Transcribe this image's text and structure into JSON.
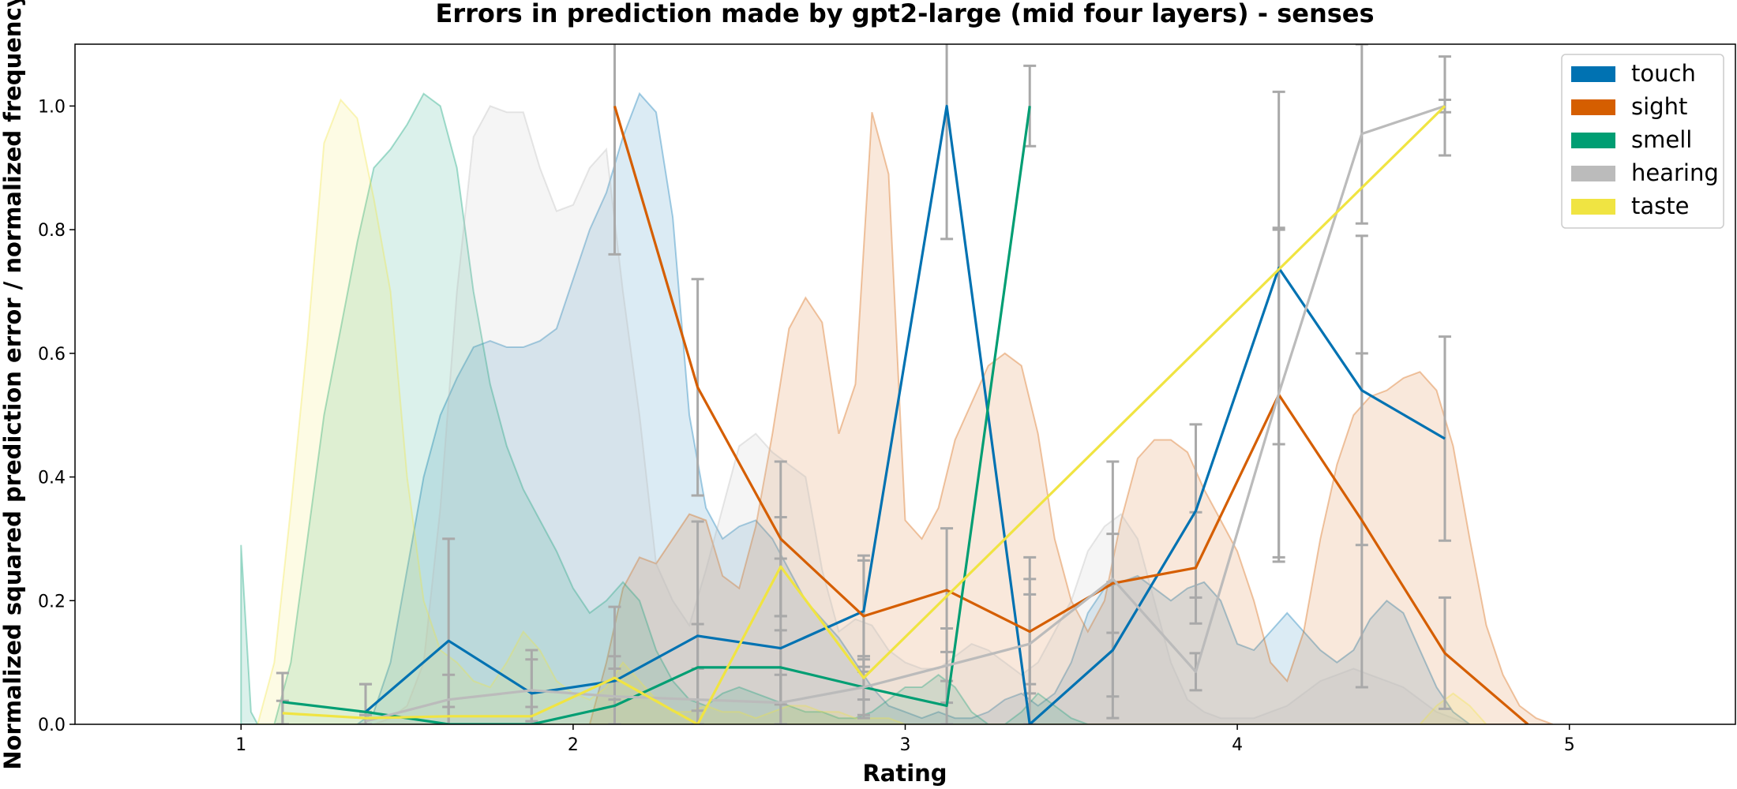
{
  "chart_data": {
    "type": "line",
    "title": "Errors in prediction made by gpt2-large (mid four layers) - senses",
    "xlabel": "Rating",
    "ylabel": "Normalized squared prediction error / normalized frequency",
    "xlim": [
      0.5,
      5.5
    ],
    "ylim": [
      0,
      1.1
    ],
    "xticks": [
      "1",
      "2",
      "3",
      "4",
      "5"
    ],
    "yticks": [
      "0.0",
      "0.2",
      "0.4",
      "0.6",
      "0.8",
      "1.0"
    ],
    "legend_position": "top-right",
    "series": [
      {
        "name": "touch",
        "color": "#0072b2",
        "x": [
          1.375,
          1.625,
          1.875,
          2.125,
          2.375,
          2.625,
          2.875,
          3.125,
          3.375,
          3.625,
          3.875,
          4.125,
          4.375,
          4.625
        ],
        "values": [
          0.02,
          0.135,
          0.05,
          0.07,
          0.143,
          0.123,
          0.183,
          1.0,
          0.0,
          0.12,
          0.345,
          0.738,
          0.54,
          0.462
        ],
        "err": [
          0.045,
          0.165,
          0.07,
          0.12,
          0.185,
          0.145,
          0.09,
          0.215,
          0.27,
          0.11,
          0.14,
          0.285,
          0.25,
          0.165
        ],
        "distribution": {
          "x": [
            1.35,
            1.4,
            1.45,
            1.5,
            1.55,
            1.6,
            1.65,
            1.7,
            1.75,
            1.8,
            1.85,
            1.9,
            1.95,
            2.0,
            2.05,
            2.1,
            2.15,
            2.2,
            2.25,
            2.3,
            2.35,
            2.4,
            2.45,
            2.5,
            2.55,
            2.6,
            2.65,
            2.7,
            2.75,
            2.8,
            2.85,
            2.9,
            2.95,
            3.0,
            3.05,
            3.1,
            3.15,
            3.2,
            3.25,
            3.3,
            3.35,
            3.4,
            3.45,
            3.5,
            3.55,
            3.6,
            3.65,
            3.7,
            3.75,
            3.8,
            3.85,
            3.9,
            3.95,
            4.0,
            4.05,
            4.1,
            4.15,
            4.2,
            4.25,
            4.3,
            4.35,
            4.4,
            4.45,
            4.5,
            4.55,
            4.6,
            4.65,
            4.7
          ],
          "values": [
            0.0,
            0.02,
            0.1,
            0.25,
            0.4,
            0.5,
            0.56,
            0.61,
            0.62,
            0.61,
            0.61,
            0.62,
            0.64,
            0.72,
            0.8,
            0.86,
            0.95,
            1.02,
            0.99,
            0.82,
            0.5,
            0.35,
            0.3,
            0.32,
            0.33,
            0.3,
            0.25,
            0.2,
            0.17,
            0.14,
            0.1,
            0.06,
            0.03,
            0.02,
            0.01,
            0.02,
            0.01,
            0.01,
            0.02,
            0.04,
            0.05,
            0.03,
            0.05,
            0.1,
            0.18,
            0.22,
            0.23,
            0.24,
            0.22,
            0.2,
            0.22,
            0.23,
            0.2,
            0.13,
            0.12,
            0.15,
            0.18,
            0.15,
            0.12,
            0.1,
            0.12,
            0.17,
            0.2,
            0.18,
            0.12,
            0.06,
            0.02,
            0.0
          ]
        }
      },
      {
        "name": "sight",
        "color": "#d55e00",
        "x": [
          2.125,
          2.375,
          2.625,
          2.875,
          3.125,
          3.375,
          3.625,
          3.875,
          4.125,
          4.375,
          4.625,
          4.875
        ],
        "values": [
          1.0,
          0.545,
          0.3,
          0.175,
          0.217,
          0.15,
          0.228,
          0.253,
          0.533,
          0.33,
          0.115,
          0.0
        ],
        "err": [
          0.24,
          0.175,
          0.125,
          0.09,
          0.1,
          0.085,
          0.08,
          0.09,
          0.27,
          0.27,
          0.09,
          0.0
        ],
        "distribution": {
          "x": [
            2.05,
            2.1,
            2.15,
            2.2,
            2.25,
            2.3,
            2.35,
            2.4,
            2.45,
            2.5,
            2.55,
            2.6,
            2.65,
            2.7,
            2.75,
            2.8,
            2.85,
            2.9,
            2.95,
            3.0,
            3.05,
            3.1,
            3.15,
            3.2,
            3.25,
            3.3,
            3.35,
            3.4,
            3.45,
            3.5,
            3.55,
            3.6,
            3.65,
            3.7,
            3.75,
            3.8,
            3.85,
            3.9,
            3.95,
            4.0,
            4.05,
            4.1,
            4.15,
            4.2,
            4.25,
            4.3,
            4.35,
            4.4,
            4.45,
            4.5,
            4.55,
            4.6,
            4.65,
            4.7,
            4.75,
            4.8,
            4.85,
            4.9,
            4.95
          ],
          "values": [
            0.0,
            0.1,
            0.22,
            0.27,
            0.26,
            0.3,
            0.34,
            0.33,
            0.24,
            0.22,
            0.32,
            0.47,
            0.64,
            0.69,
            0.65,
            0.47,
            0.55,
            0.99,
            0.89,
            0.33,
            0.3,
            0.35,
            0.46,
            0.52,
            0.58,
            0.6,
            0.58,
            0.47,
            0.3,
            0.2,
            0.15,
            0.2,
            0.33,
            0.43,
            0.46,
            0.46,
            0.44,
            0.38,
            0.33,
            0.28,
            0.2,
            0.1,
            0.07,
            0.15,
            0.3,
            0.42,
            0.5,
            0.53,
            0.54,
            0.56,
            0.57,
            0.54,
            0.45,
            0.3,
            0.16,
            0.08,
            0.03,
            0.01,
            0.0
          ]
        }
      },
      {
        "name": "smell",
        "color": "#009e73",
        "x": [
          1.125,
          1.375,
          1.625,
          1.875,
          2.125,
          2.375,
          2.625,
          2.875,
          3.125,
          3.375
        ],
        "values": [
          0.036,
          0.02,
          0.0,
          0.0,
          0.03,
          0.092,
          0.092,
          0.06,
          0.03,
          1.0
        ],
        "err": [
          0.047,
          0.045,
          0.0,
          0.0,
          0.04,
          0.07,
          0.06,
          0.045,
          0.04,
          0.065
        ],
        "distribution": {
          "x": [
            1.0,
            1.03,
            1.05,
            1.1,
            1.15,
            1.2,
            1.25,
            1.3,
            1.35,
            1.4,
            1.45,
            1.5,
            1.55,
            1.6,
            1.65,
            1.7,
            1.75,
            1.8,
            1.85,
            1.9,
            1.95,
            2.0,
            2.05,
            2.1,
            2.15,
            2.2,
            2.25,
            2.3,
            2.35,
            2.4,
            2.45,
            2.5,
            2.55,
            2.6,
            2.65,
            2.7,
            2.75,
            2.8,
            2.85,
            2.9,
            2.95,
            3.0,
            3.05,
            3.1,
            3.15,
            3.2,
            3.25,
            3.3,
            3.35,
            3.4,
            3.45,
            3.5,
            3.55
          ],
          "values": [
            0.29,
            0.02,
            0.0,
            0.0,
            0.1,
            0.3,
            0.5,
            0.64,
            0.78,
            0.9,
            0.93,
            0.97,
            1.02,
            1.0,
            0.9,
            0.7,
            0.55,
            0.45,
            0.38,
            0.33,
            0.28,
            0.22,
            0.18,
            0.2,
            0.23,
            0.2,
            0.12,
            0.07,
            0.04,
            0.03,
            0.05,
            0.06,
            0.05,
            0.04,
            0.03,
            0.02,
            0.02,
            0.01,
            0.01,
            0.02,
            0.04,
            0.06,
            0.06,
            0.08,
            0.06,
            0.02,
            0.0,
            0.0,
            0.02,
            0.05,
            0.03,
            0.01,
            0.0
          ]
        }
      },
      {
        "name": "hearing",
        "color": "#bbbbbb",
        "x": [
          1.375,
          1.625,
          1.875,
          2.125,
          2.375,
          2.625,
          2.875,
          3.125,
          3.375,
          3.625,
          3.875,
          4.125,
          4.375,
          4.625
        ],
        "values": [
          0.005,
          0.04,
          0.055,
          0.045,
          0.04,
          0.035,
          0.06,
          0.095,
          0.13,
          0.235,
          0.085,
          0.535,
          0.955,
          1.0
        ],
        "err": [
          0.01,
          0.04,
          0.05,
          0.045,
          0.05,
          0.045,
          0.05,
          0.06,
          0.08,
          0.19,
          0.03,
          0.265,
          0.145,
          0.08
        ],
        "distribution": {
          "x": [
            1.4,
            1.45,
            1.5,
            1.55,
            1.6,
            1.65,
            1.7,
            1.75,
            1.8,
            1.85,
            1.9,
            1.95,
            2.0,
            2.05,
            2.1,
            2.15,
            2.2,
            2.25,
            2.3,
            2.35,
            2.4,
            2.45,
            2.5,
            2.55,
            2.6,
            2.65,
            2.7,
            2.75,
            2.8,
            2.85,
            2.9,
            2.95,
            3.0,
            3.05,
            3.1,
            3.15,
            3.2,
            3.25,
            3.3,
            3.35,
            3.4,
            3.45,
            3.5,
            3.55,
            3.6,
            3.65,
            3.7,
            3.75,
            3.8,
            3.85,
            3.9,
            3.95,
            4.0,
            4.05,
            4.1,
            4.15,
            4.2,
            4.25,
            4.3,
            4.35,
            4.4,
            4.45,
            4.5,
            4.55,
            4.6,
            4.65,
            4.7
          ],
          "values": [
            0.0,
            0.01,
            0.03,
            0.1,
            0.35,
            0.7,
            0.95,
            1.0,
            0.99,
            0.99,
            0.9,
            0.83,
            0.84,
            0.9,
            0.93,
            0.7,
            0.5,
            0.26,
            0.2,
            0.16,
            0.25,
            0.35,
            0.45,
            0.47,
            0.44,
            0.42,
            0.4,
            0.25,
            0.15,
            0.17,
            0.16,
            0.12,
            0.1,
            0.09,
            0.09,
            0.11,
            0.13,
            0.12,
            0.1,
            0.08,
            0.1,
            0.15,
            0.2,
            0.28,
            0.32,
            0.34,
            0.3,
            0.2,
            0.1,
            0.04,
            0.02,
            0.01,
            0.01,
            0.01,
            0.02,
            0.03,
            0.05,
            0.07,
            0.08,
            0.09,
            0.08,
            0.07,
            0.06,
            0.04,
            0.02,
            0.01,
            0.0
          ]
        }
      },
      {
        "name": "taste",
        "color": "#f0e442",
        "x": [
          1.125,
          1.375,
          1.625,
          1.875,
          2.125,
          2.375,
          2.625,
          2.875,
          4.625
        ],
        "values": [
          0.018,
          0.01,
          0.013,
          0.013,
          0.075,
          0.0,
          0.255,
          0.075,
          1.0
        ],
        "err": [
          0.02,
          0.01,
          0.015,
          0.015,
          0.035,
          0.0,
          0.08,
          0.035,
          0.01
        ],
        "distribution": {
          "x": [
            1.05,
            1.1,
            1.15,
            1.2,
            1.25,
            1.3,
            1.35,
            1.4,
            1.45,
            1.5,
            1.55,
            1.6,
            1.65,
            1.7,
            1.75,
            1.8,
            1.85,
            1.9,
            1.95,
            2.0,
            2.05,
            2.1,
            2.15,
            2.2,
            2.25,
            2.3,
            2.35,
            2.4,
            2.45,
            2.5,
            2.55,
            2.6,
            2.65,
            2.7,
            2.75,
            2.8,
            2.85,
            2.9,
            2.95,
            3.0,
            4.55,
            4.6,
            4.65,
            4.7,
            4.75
          ],
          "values": [
            0.0,
            0.1,
            0.35,
            0.62,
            0.94,
            1.01,
            0.98,
            0.85,
            0.7,
            0.4,
            0.2,
            0.12,
            0.1,
            0.07,
            0.06,
            0.1,
            0.15,
            0.12,
            0.07,
            0.05,
            0.04,
            0.06,
            0.1,
            0.07,
            0.04,
            0.02,
            0.02,
            0.03,
            0.02,
            0.02,
            0.01,
            0.02,
            0.03,
            0.03,
            0.02,
            0.02,
            0.01,
            0.01,
            0.01,
            0.0,
            0.0,
            0.03,
            0.05,
            0.03,
            0.0
          ]
        }
      }
    ]
  }
}
